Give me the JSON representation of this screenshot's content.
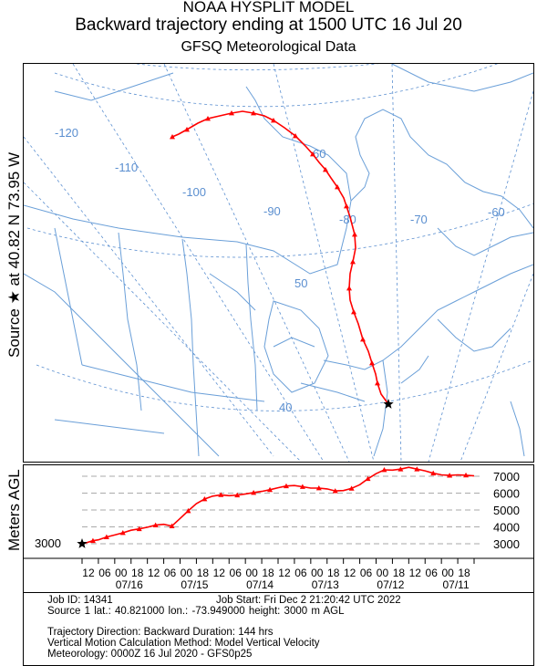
{
  "header": {
    "line1": "NOAA HYSPLIT MODEL",
    "line2": "Backward trajectory ending at 1500 UTC 16 Jul 20",
    "line3": "GFSQ Meteorological Data"
  },
  "side": {
    "source_label": "Source ★ at   40.82 N   73.95 W",
    "height_axis_label": "Meters AGL"
  },
  "map": {
    "lon_labels": [
      "-120",
      "-110",
      "-100",
      "-90",
      "-80",
      "-70",
      "-60"
    ],
    "lat_labels": [
      "60",
      "50",
      "40"
    ],
    "colors": {
      "trajectory": "#ff0000",
      "graticule": "#5b8fd0",
      "coast": "#6a9fd8"
    }
  },
  "chart_data": {
    "type": "line",
    "title": "Backward trajectory ending at 1500 UTC 16 Jul 20",
    "series": [
      {
        "name": "",
        "color": "#ff0000"
      }
    ],
    "xlabel": "",
    "ylabel": "Meters AGL",
    "yticks": [
      3000,
      4000,
      5000,
      6000,
      7000
    ],
    "ylim": [
      3000,
      7000
    ],
    "x_tick_labels": [
      "12",
      "06",
      "00",
      "18",
      "12",
      "06",
      "00",
      "18",
      "12",
      "06",
      "00",
      "18",
      "12",
      "06",
      "00",
      "18",
      "12",
      "06",
      "00",
      "18",
      "12",
      "06",
      "00",
      "18"
    ],
    "x_date_labels": [
      "07/16",
      "07/15",
      "07/14",
      "07/13",
      "07/12",
      "07/11"
    ],
    "source_height_label": "3000",
    "height_profile": [
      {
        "hours_back": 0,
        "height": 3000
      },
      {
        "hours_back": 2,
        "height": 3080
      },
      {
        "hours_back": 4,
        "height": 3180
      },
      {
        "hours_back": 6,
        "height": 3230
      },
      {
        "hours_back": 9,
        "height": 3400
      },
      {
        "hours_back": 12,
        "height": 3520
      },
      {
        "hours_back": 15,
        "height": 3650
      },
      {
        "hours_back": 18,
        "height": 3800
      },
      {
        "hours_back": 21,
        "height": 3880
      },
      {
        "hours_back": 24,
        "height": 3980
      },
      {
        "hours_back": 27,
        "height": 4100
      },
      {
        "hours_back": 30,
        "height": 4150
      },
      {
        "hours_back": 33,
        "height": 4050
      },
      {
        "hours_back": 36,
        "height": 4500
      },
      {
        "hours_back": 39,
        "height": 4950
      },
      {
        "hours_back": 42,
        "height": 5380
      },
      {
        "hours_back": 45,
        "height": 5650
      },
      {
        "hours_back": 48,
        "height": 5820
      },
      {
        "hours_back": 51,
        "height": 5900
      },
      {
        "hours_back": 54,
        "height": 5850
      },
      {
        "hours_back": 57,
        "height": 5880
      },
      {
        "hours_back": 60,
        "height": 5950
      },
      {
        "hours_back": 63,
        "height": 6030
      },
      {
        "hours_back": 66,
        "height": 6100
      },
      {
        "hours_back": 69,
        "height": 6200
      },
      {
        "hours_back": 72,
        "height": 6320
      },
      {
        "hours_back": 75,
        "height": 6420
      },
      {
        "hours_back": 78,
        "height": 6450
      },
      {
        "hours_back": 81,
        "height": 6380
      },
      {
        "hours_back": 84,
        "height": 6300
      },
      {
        "hours_back": 87,
        "height": 6300
      },
      {
        "hours_back": 90,
        "height": 6250
      },
      {
        "hours_back": 93,
        "height": 6130
      },
      {
        "hours_back": 96,
        "height": 6150
      },
      {
        "hours_back": 99,
        "height": 6280
      },
      {
        "hours_back": 102,
        "height": 6500
      },
      {
        "hours_back": 105,
        "height": 6850
      },
      {
        "hours_back": 108,
        "height": 7150
      },
      {
        "hours_back": 111,
        "height": 7380
      },
      {
        "hours_back": 114,
        "height": 7360
      },
      {
        "hours_back": 117,
        "height": 7420
      },
      {
        "hours_back": 120,
        "height": 7530
      },
      {
        "hours_back": 123,
        "height": 7420
      },
      {
        "hours_back": 126,
        "height": 7320
      },
      {
        "hours_back": 129,
        "height": 7180
      },
      {
        "hours_back": 132,
        "height": 7080
      },
      {
        "hours_back": 135,
        "height": 7050
      },
      {
        "hours_back": 138,
        "height": 7080
      },
      {
        "hours_back": 141,
        "height": 7060
      },
      {
        "hours_back": 144,
        "height": 7020
      }
    ]
  },
  "info": {
    "job_id": "Job ID: 14341",
    "job_start": "Job Start: Fri Dec  2 21:20:42 UTC 2022",
    "source": "Source 1       lat.: 40.821000      lon.: -73.949000       height: 3000 m AGL",
    "direction": "Trajectory Direction: Backward       Duration: 144 hrs",
    "vertical": "Vertical Motion Calculation Method:          Model Vertical Velocity",
    "meteorology": "Meteorology: 0000Z 16 Jul 2020 - GFS0p25"
  }
}
